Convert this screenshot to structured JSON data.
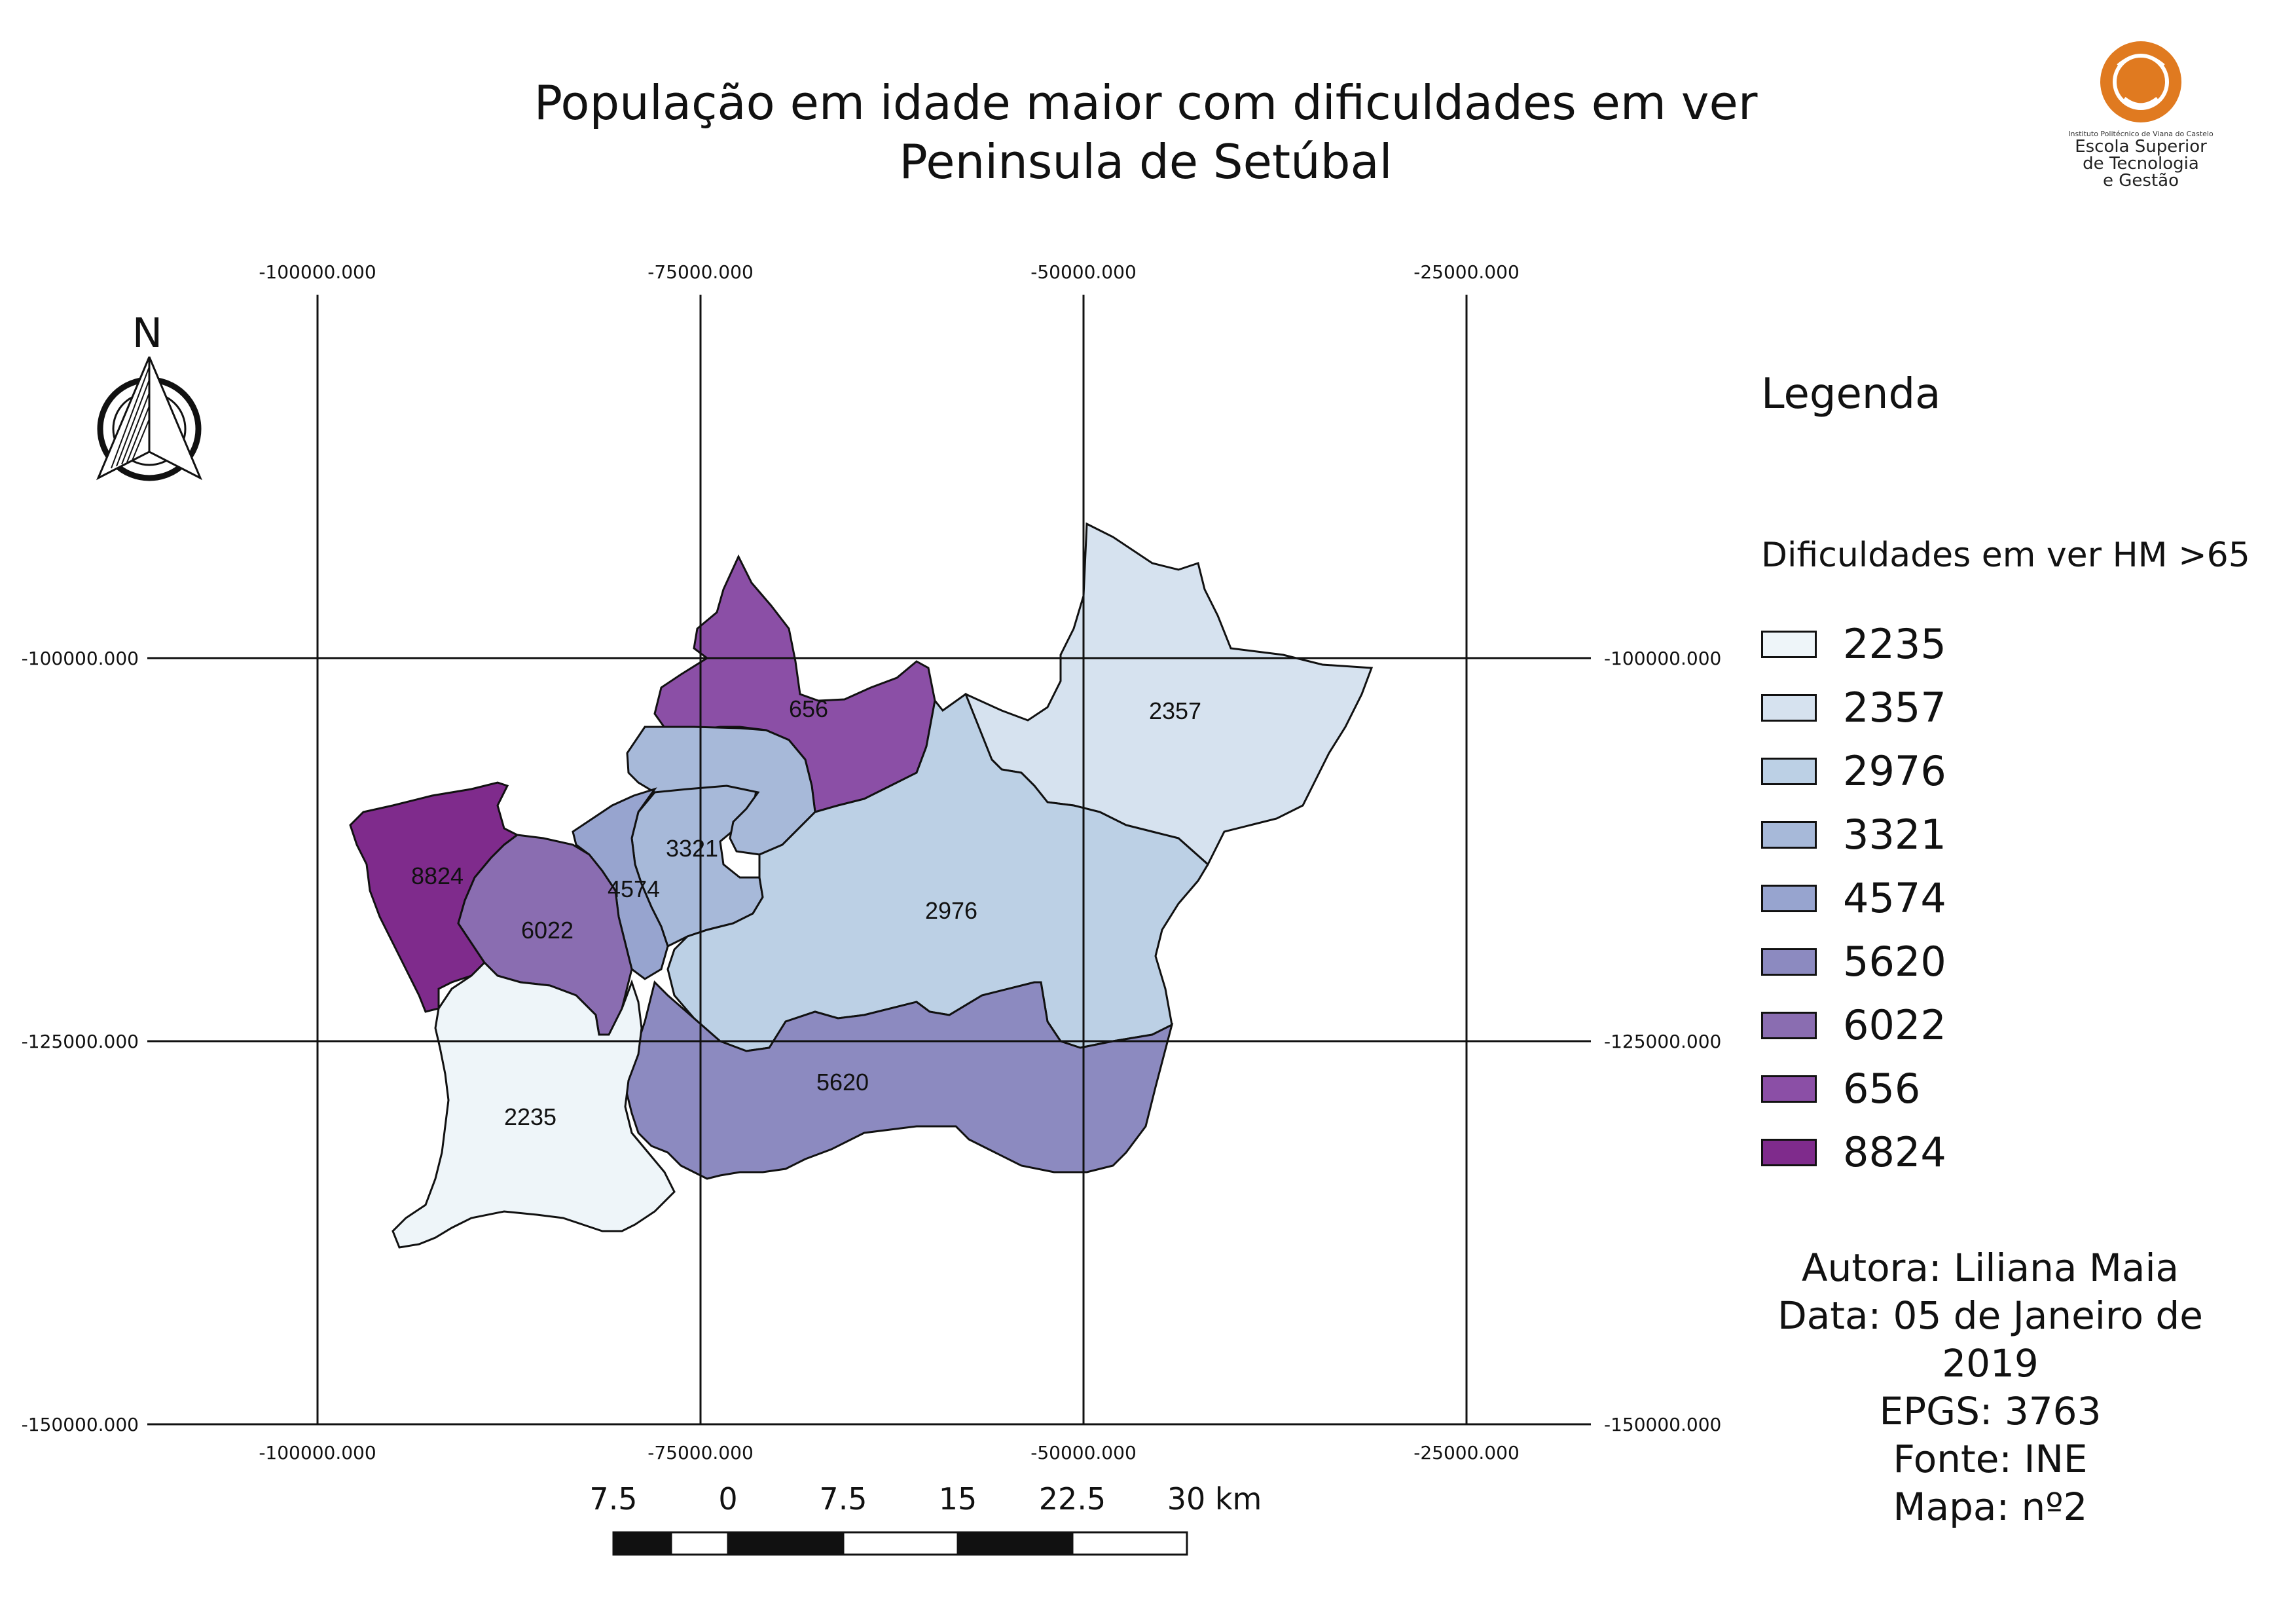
{
  "title": {
    "line1": "População em idade maior com dificuldades em ver",
    "line2": "Peninsula de Setúbal"
  },
  "logo": {
    "institute": "Instituto Politécnico de Viana do Castelo",
    "school_line1": "Escola Superior",
    "school_line2": "de Tecnologia",
    "school_line3": "e Gestão",
    "color": "#e07a20"
  },
  "north_arrow": {
    "letter": "N"
  },
  "grid": {
    "x_labels": [
      "-100000.000",
      "-75000.000",
      "-50000.000",
      "-25000.000"
    ],
    "y_labels": [
      "-100000.000",
      "-125000.000",
      "-150000.000"
    ]
  },
  "regions": [
    {
      "label": "656",
      "value": 656,
      "color": "#8b4fa6"
    },
    {
      "label": "2357",
      "value": 2357,
      "color": "#d6e2ef"
    },
    {
      "label": "3321",
      "value": 3321,
      "color": "#a7b9d9"
    },
    {
      "label": "4574",
      "value": 4574,
      "color": "#97a4cf"
    },
    {
      "label": "2976",
      "value": 2976,
      "color": "#bcd0e5"
    },
    {
      "label": "8824",
      "value": 8824,
      "color": "#7f2b8c"
    },
    {
      "label": "6022",
      "value": 6022,
      "color": "#8a6db1"
    },
    {
      "label": "5620",
      "value": 5620,
      "color": "#8c8ac0"
    },
    {
      "label": "2235",
      "value": 2235,
      "color": "#eef5f9"
    }
  ],
  "legend": {
    "title": "Legenda",
    "subtitle": "Dificuldades em ver HM >65",
    "items": [
      {
        "label": "2235",
        "color": "#eef5f9"
      },
      {
        "label": "2357",
        "color": "#d6e2ef"
      },
      {
        "label": "2976",
        "color": "#bcd0e5"
      },
      {
        "label": "3321",
        "color": "#a7b9d9"
      },
      {
        "label": "4574",
        "color": "#97a4cf"
      },
      {
        "label": "5620",
        "color": "#8c8ac0"
      },
      {
        "label": "6022",
        "color": "#8a6db1"
      },
      {
        "label": "656",
        "color": "#8b4fa6"
      },
      {
        "label": "8824",
        "color": "#7f2b8c"
      }
    ]
  },
  "info": {
    "author": "Autora: Liliana Maia",
    "date_line1": "Data: 05 de Janeiro de",
    "date_line2": "2019",
    "epsg": "EPGS: 3763",
    "source": "Fonte: INE",
    "map_number": "Mapa: nº2"
  },
  "scale_bar": {
    "labels": [
      "7.5",
      "0",
      "7.5",
      "15",
      "22.5",
      "30 km"
    ]
  }
}
